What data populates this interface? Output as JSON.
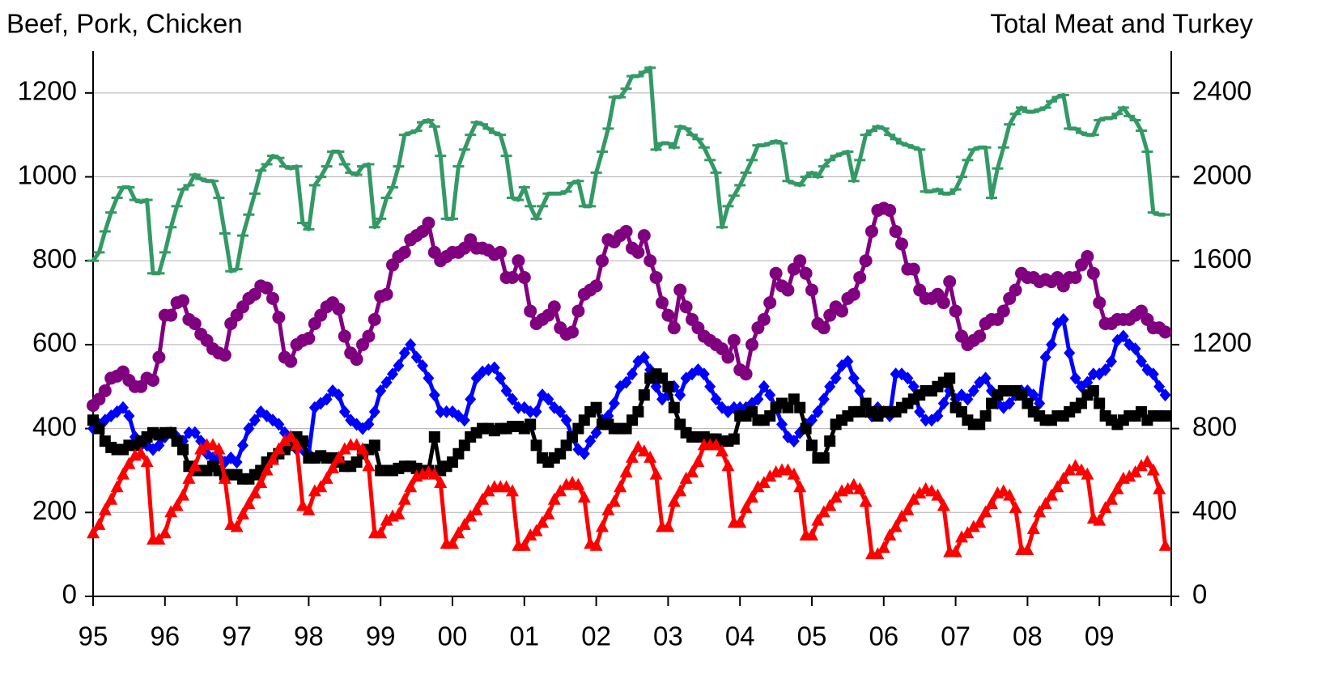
{
  "chart_data": {
    "type": "line",
    "y_label": "Beef, Pork, Chicken",
    "y2_label": "Total Meat and Turkey",
    "categories": [
      "95",
      null,
      null,
      null,
      null,
      null,
      null,
      null,
      null,
      null,
      null,
      null,
      "96",
      null,
      null,
      null,
      null,
      null,
      null,
      null,
      null,
      null,
      null,
      null,
      "97",
      null,
      null,
      null,
      null,
      null,
      null,
      null,
      null,
      null,
      null,
      null,
      "98",
      null,
      null,
      null,
      null,
      null,
      null,
      null,
      null,
      null,
      null,
      null,
      "99",
      null,
      null,
      null,
      null,
      null,
      null,
      null,
      null,
      null,
      null,
      null,
      "00",
      null,
      null,
      null,
      null,
      null,
      null,
      null,
      null,
      null,
      null,
      null,
      "01",
      null,
      null,
      null,
      null,
      null,
      null,
      null,
      null,
      null,
      null,
      null,
      "02",
      null,
      null,
      null,
      null,
      null,
      null,
      null,
      null,
      null,
      null,
      null,
      "03",
      null,
      null,
      null,
      null,
      null,
      null,
      null,
      null,
      null,
      null,
      null,
      "04",
      null,
      null,
      null,
      null,
      null,
      null,
      null,
      null,
      null,
      null,
      null,
      "05",
      null,
      null,
      null,
      null,
      null,
      null,
      null,
      null,
      null,
      null,
      null,
      "06",
      null,
      null,
      null,
      null,
      null,
      null,
      null,
      null,
      null,
      null,
      null,
      "07",
      null,
      null,
      null,
      null,
      null,
      null,
      null,
      null,
      null,
      null,
      null,
      "08",
      null,
      null,
      null,
      null,
      null,
      null,
      null,
      null,
      null,
      null,
      null,
      "09",
      null,
      null,
      null,
      null,
      null,
      null,
      null,
      null,
      null,
      null,
      null
    ],
    "ylim": [
      0,
      1300
    ],
    "yticks": [
      0,
      200,
      400,
      600,
      800,
      1000,
      1200
    ],
    "y2lim": [
      0,
      2600
    ],
    "y2ticks": [
      0,
      400,
      800,
      1200,
      1600,
      2000,
      2400
    ],
    "grid": true,
    "series": [
      {
        "color": "#339966",
        "marker": "dash",
        "axis": "y2",
        "values": [
          1600,
          1640,
          1740,
          1830,
          1900,
          1950,
          1950,
          1890,
          1880,
          1890,
          1540,
          1540,
          1640,
          1760,
          1860,
          1940,
          1960,
          2010,
          1990,
          1980,
          1980,
          1900,
          1730,
          1550,
          1560,
          1720,
          1820,
          1920,
          2030,
          2060,
          2100,
          2090,
          2050,
          2040,
          2050,
          1780,
          1750,
          1960,
          2000,
          2050,
          2120,
          2120,
          2060,
          2020,
          2010,
          2050,
          2060,
          1760,
          1800,
          1900,
          1950,
          2050,
          2200,
          2210,
          2220,
          2260,
          2270,
          2240,
          2100,
          1800,
          1800,
          2050,
          2130,
          2200,
          2260,
          2250,
          2230,
          2210,
          2200,
          2100,
          1900,
          1890,
          1950,
          1860,
          1800,
          1860,
          1920,
          1920,
          1920,
          1930,
          1970,
          1980,
          1860,
          1860,
          2020,
          2120,
          2230,
          2380,
          2380,
          2420,
          2480,
          2480,
          2500,
          2520,
          2130,
          2160,
          2160,
          2140,
          2240,
          2230,
          2200,
          2180,
          2140,
          2080,
          2020,
          1760,
          1860,
          1910,
          1960,
          2020,
          2080,
          2150,
          2150,
          2160,
          2170,
          2160,
          1980,
          1970,
          1960,
          2000,
          2020,
          2000,
          2050,
          2080,
          2100,
          2110,
          2120,
          1980,
          2080,
          2200,
          2220,
          2240,
          2230,
          2200,
          2180,
          2160,
          2150,
          2140,
          2130,
          1930,
          1930,
          1940,
          1920,
          1920,
          1940,
          2000,
          2080,
          2130,
          2140,
          2140,
          1900,
          2040,
          2140,
          2250,
          2300,
          2330,
          2310,
          2310,
          2320,
          2330,
          2360,
          2380,
          2390,
          2230,
          2230,
          2210,
          2200,
          2200,
          2270,
          2280,
          2280,
          2300,
          2330,
          2290,
          2270,
          2220,
          2120,
          1830,
          1820,
          1820
        ]
      },
      {
        "color": "#800080",
        "marker": "circle",
        "values": [
          455,
          470,
          490,
          520,
          525,
          535,
          515,
          500,
          500,
          520,
          515,
          570,
          670,
          670,
          700,
          705,
          660,
          650,
          625,
          610,
          590,
          580,
          575,
          650,
          670,
          690,
          710,
          720,
          740,
          735,
          710,
          665,
          570,
          560,
          600,
          610,
          615,
          650,
          670,
          690,
          700,
          685,
          620,
          580,
          565,
          600,
          620,
          660,
          715,
          720,
          790,
          810,
          820,
          850,
          860,
          870,
          890,
          820,
          800,
          810,
          820,
          820,
          830,
          850,
          830,
          830,
          825,
          815,
          820,
          760,
          760,
          800,
          760,
          680,
          650,
          660,
          670,
          690,
          640,
          625,
          630,
          680,
          720,
          730,
          740,
          800,
          850,
          845,
          860,
          870,
          830,
          820,
          860,
          800,
          760,
          700,
          670,
          640,
          730,
          690,
          660,
          640,
          620,
          610,
          600,
          590,
          570,
          610,
          540,
          530,
          600,
          640,
          660,
          700,
          770,
          740,
          730,
          780,
          800,
          770,
          730,
          650,
          640,
          670,
          690,
          680,
          710,
          720,
          760,
          800,
          870,
          920,
          925,
          920,
          870,
          840,
          780,
          780,
          730,
          710,
          710,
          720,
          700,
          750,
          680,
          620,
          600,
          610,
          620,
          650,
          660,
          660,
          680,
          710,
          730,
          770,
          760,
          760,
          750,
          755,
          750,
          760,
          740,
          760,
          760,
          790,
          810,
          770,
          700,
          650,
          650,
          660,
          660,
          660,
          670,
          680,
          660,
          640,
          640,
          630
        ]
      },
      {
        "color": "#0000ff",
        "marker": "diamond",
        "values": [
          400,
          410,
          420,
          430,
          440,
          450,
          430,
          380,
          360,
          360,
          350,
          360,
          380,
          390,
          380,
          370,
          390,
          390,
          370,
          340,
          330,
          330,
          320,
          330,
          320,
          360,
          400,
          420,
          440,
          430,
          420,
          410,
          390,
          370,
          350,
          350,
          340,
          450,
          460,
          470,
          490,
          480,
          440,
          420,
          410,
          400,
          410,
          440,
          490,
          510,
          530,
          550,
          580,
          600,
          570,
          550,
          520,
          480,
          440,
          440,
          440,
          430,
          420,
          470,
          520,
          535,
          540,
          545,
          520,
          490,
          470,
          450,
          450,
          440,
          440,
          480,
          470,
          450,
          440,
          420,
          380,
          350,
          340,
          370,
          390,
          420,
          430,
          460,
          500,
          510,
          530,
          560,
          570,
          540,
          500,
          470,
          480,
          500,
          480,
          520,
          530,
          540,
          530,
          500,
          470,
          450,
          440,
          450,
          450,
          450,
          460,
          470,
          500,
          480,
          450,
          410,
          380,
          370,
          390,
          410,
          420,
          440,
          470,
          500,
          520,
          550,
          560,
          520,
          490,
          440,
          430,
          450,
          440,
          430,
          530,
          530,
          520,
          500,
          440,
          420,
          420,
          430,
          460,
          490,
          470,
          480,
          470,
          490,
          510,
          520,
          490,
          460,
          450,
          460,
          480,
          490,
          490,
          480,
          460,
          570,
          600,
          650,
          660,
          580,
          520,
          500,
          510,
          530,
          530,
          540,
          560,
          610,
          620,
          600,
          590,
          560,
          540,
          530,
          500,
          480
        ]
      },
      {
        "color": "#000000",
        "marker": "square",
        "values": [
          420,
          400,
          370,
          355,
          350,
          350,
          360,
          360,
          370,
          380,
          390,
          385,
          390,
          390,
          370,
          350,
          310,
          300,
          300,
          300,
          310,
          300,
          290,
          290,
          290,
          280,
          280,
          290,
          300,
          320,
          330,
          340,
          350,
          360,
          380,
          370,
          330,
          330,
          335,
          330,
          330,
          320,
          310,
          310,
          320,
          340,
          350,
          360,
          300,
          300,
          300,
          305,
          310,
          310,
          305,
          300,
          300,
          380,
          300,
          310,
          320,
          340,
          360,
          380,
          390,
          400,
          400,
          395,
          400,
          400,
          405,
          405,
          400,
          410,
          360,
          330,
          320,
          330,
          340,
          360,
          380,
          400,
          420,
          440,
          450,
          410,
          410,
          400,
          400,
          400,
          420,
          440,
          480,
          520,
          530,
          520,
          500,
          450,
          410,
          390,
          380,
          380,
          380,
          375,
          375,
          370,
          370,
          375,
          430,
          430,
          440,
          420,
          420,
          430,
          450,
          460,
          450,
          470,
          450,
          400,
          360,
          330,
          330,
          370,
          410,
          420,
          430,
          440,
          440,
          460,
          440,
          430,
          440,
          440,
          440,
          450,
          460,
          470,
          480,
          490,
          490,
          500,
          510,
          520,
          450,
          440,
          420,
          410,
          410,
          430,
          460,
          480,
          490,
          490,
          490,
          480,
          460,
          440,
          430,
          420,
          420,
          430,
          430,
          440,
          450,
          460,
          480,
          490,
          460,
          430,
          420,
          410,
          420,
          430,
          430,
          440,
          420,
          430,
          430,
          430
        ]
      },
      {
        "color": "#ff0000",
        "marker": "triangle",
        "axis": "y2",
        "values": [
          300,
          340,
          410,
          460,
          520,
          580,
          630,
          670,
          680,
          640,
          270,
          270,
          300,
          400,
          430,
          480,
          560,
          620,
          700,
          720,
          720,
          700,
          560,
          340,
          330,
          390,
          440,
          490,
          540,
          600,
          650,
          700,
          740,
          760,
          720,
          430,
          410,
          500,
          520,
          560,
          610,
          660,
          700,
          720,
          720,
          700,
          620,
          300,
          300,
          360,
          380,
          390,
          460,
          520,
          570,
          580,
          590,
          580,
          540,
          250,
          250,
          300,
          340,
          380,
          410,
          460,
          500,
          520,
          520,
          520,
          500,
          240,
          240,
          290,
          310,
          350,
          390,
          460,
          500,
          530,
          540,
          530,
          470,
          250,
          240,
          330,
          410,
          450,
          520,
          590,
          660,
          710,
          690,
          660,
          580,
          330,
          330,
          450,
          500,
          560,
          590,
          640,
          720,
          720,
          720,
          690,
          620,
          350,
          350,
          420,
          470,
          520,
          540,
          570,
          590,
          600,
          600,
          580,
          520,
          290,
          290,
          360,
          400,
          430,
          470,
          500,
          510,
          530,
          510,
          450,
          200,
          200,
          230,
          290,
          330,
          380,
          410,
          460,
          490,
          510,
          500,
          480,
          430,
          210,
          210,
          280,
          300,
          330,
          350,
          400,
          440,
          490,
          500,
          480,
          420,
          220,
          220,
          320,
          400,
          440,
          480,
          520,
          560,
          600,
          620,
          600,
          580,
          370,
          360,
          420,
          460,
          510,
          560,
          570,
          590,
          620,
          640,
          600,
          510,
          240
        ]
      }
    ]
  }
}
